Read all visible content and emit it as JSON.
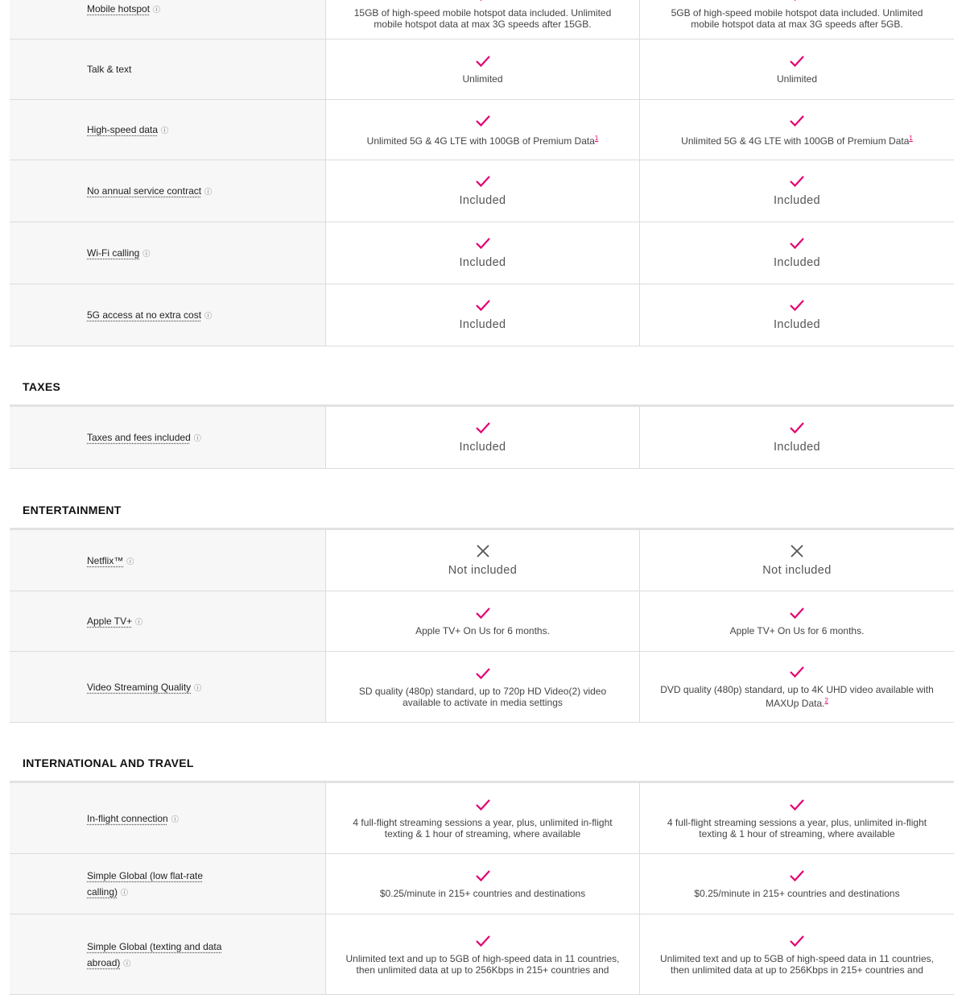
{
  "sections": [
    {
      "rows": [
        {
          "label": "Mobile hotspot",
          "info": true,
          "cells": [
            {
              "icon": "check",
              "text": "15GB of high-speed mobile hotspot data included. Unlimited mobile hotspot data at max 3G speeds after 15GB."
            },
            {
              "icon": "check",
              "text": "5GB of high-speed mobile hotspot data included. Unlimited mobile hotspot data at max 3G speeds after 5GB."
            }
          ]
        },
        {
          "label": "Talk & text",
          "info": false,
          "cells": [
            {
              "icon": "check",
              "text": "Unlimited"
            },
            {
              "icon": "check",
              "text": "Unlimited"
            }
          ]
        },
        {
          "label": "High-speed data",
          "info": true,
          "cells": [
            {
              "icon": "check",
              "text": "Unlimited 5G & 4G LTE with 100GB of Premium Data",
              "sup": "1"
            },
            {
              "icon": "check",
              "text": "Unlimited 5G & 4G LTE with 100GB of Premium Data",
              "sup": "1"
            }
          ]
        },
        {
          "label": "No annual service contract",
          "info": true,
          "cells": [
            {
              "icon": "check",
              "text": "Included",
              "big": true
            },
            {
              "icon": "check",
              "text": "Included",
              "big": true
            }
          ]
        },
        {
          "label": "Wi-Fi calling",
          "info": true,
          "cells": [
            {
              "icon": "check",
              "text": "Included",
              "big": true
            },
            {
              "icon": "check",
              "text": "Included",
              "big": true
            }
          ]
        },
        {
          "label": "5G access at no extra cost",
          "info": true,
          "cells": [
            {
              "icon": "check",
              "text": "Included",
              "big": true
            },
            {
              "icon": "check",
              "text": "Included",
              "big": true
            }
          ]
        }
      ]
    },
    {
      "title": "TAXES",
      "rows": [
        {
          "label": "Taxes and fees included",
          "info": true,
          "cells": [
            {
              "icon": "check",
              "text": "Included",
              "big": true
            },
            {
              "icon": "check",
              "text": "Included",
              "big": true
            }
          ]
        }
      ]
    },
    {
      "title": "ENTERTAINMENT",
      "rows": [
        {
          "label": "Netflix™",
          "info": true,
          "cells": [
            {
              "icon": "x",
              "text": "Not included",
              "big": true
            },
            {
              "icon": "x",
              "text": "Not included",
              "big": true
            }
          ]
        },
        {
          "label": "Apple TV+",
          "info": true,
          "cells": [
            {
              "icon": "check",
              "text": "Apple TV+ On Us for 6 months."
            },
            {
              "icon": "check",
              "text": "Apple TV+ On Us for 6 months."
            }
          ]
        },
        {
          "label": "Video Streaming Quality",
          "info": true,
          "cells": [
            {
              "icon": "check",
              "text": "SD quality (480p) standard, up to 720p HD Video(2) video available to activate in media settings"
            },
            {
              "icon": "check",
              "text": "DVD quality (480p) standard, up to 4K UHD video available with MAXUp Data.",
              "sup": "2"
            }
          ]
        }
      ]
    },
    {
      "title": "INTERNATIONAL AND TRAVEL",
      "rows": [
        {
          "label": "In-flight connection",
          "info": true,
          "cells": [
            {
              "icon": "check",
              "text": "4 full-flight streaming sessions a year, plus, unlimited in-flight texting & 1 hour of streaming, where available"
            },
            {
              "icon": "check",
              "text": "4 full-flight streaming sessions a year, plus, unlimited in-flight texting & 1 hour of streaming, where available"
            }
          ]
        },
        {
          "label": "Simple Global (low flat-rate calling)",
          "info": true,
          "cells": [
            {
              "icon": "check",
              "text": "$0.25/minute in 215+ countries and destinations"
            },
            {
              "icon": "check",
              "text": "$0.25/minute in 215+ countries and destinations"
            }
          ]
        },
        {
          "label": "Simple Global (texting and data abroad)",
          "info": true,
          "cells": [
            {
              "icon": "check",
              "text": "Unlimited text and up to 5GB of high-speed data in 11 countries, then unlimited data at up to 256Kbps in 215+ countries and"
            },
            {
              "icon": "check",
              "text": "Unlimited text and up to 5GB of high-speed data in 11 countries, then unlimited data at up to 256Kbps in 215+ countries and"
            }
          ]
        }
      ]
    }
  ]
}
